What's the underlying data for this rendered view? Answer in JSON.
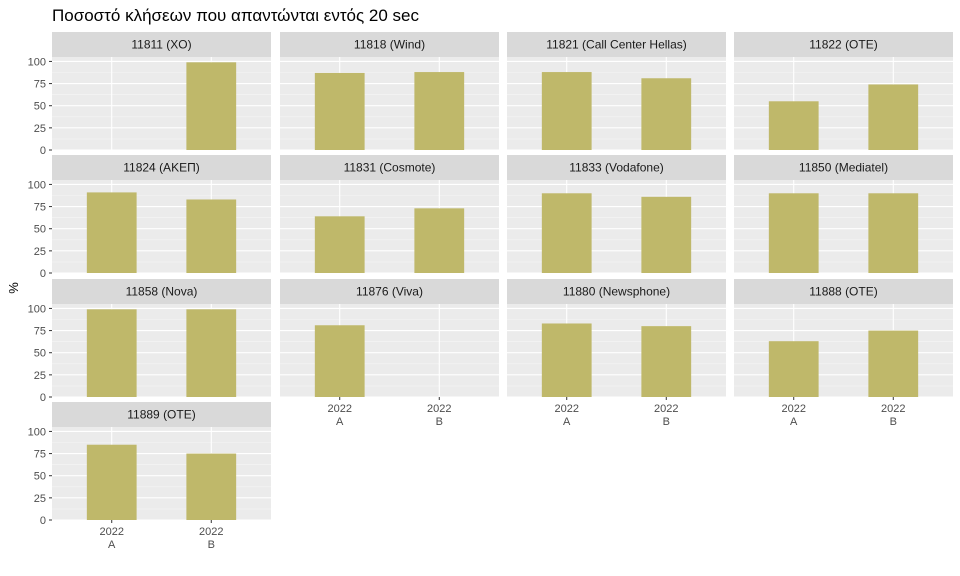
{
  "chart_data": {
    "type": "bar",
    "title": "Ποσοστό κλήσεων που απαντώνται εντός 20 sec",
    "ylabel": "%",
    "xlabel": "",
    "ylim": [
      0,
      105
    ],
    "y_ticks": [
      "0",
      "25",
      "50",
      "75",
      "100"
    ],
    "y_tick_values": [
      0,
      25,
      50,
      75,
      100
    ],
    "categories": [
      "2022 A",
      "2022 B"
    ],
    "category_lines": [
      [
        "2022",
        "A"
      ],
      [
        "2022",
        "B"
      ]
    ],
    "bar_color": "#bfb86a",
    "panel_background": "#ebebeb",
    "strip_background": "#d9d9d9",
    "grid": true,
    "facet_layout": {
      "columns": 4,
      "rows": 4
    },
    "panels": [
      {
        "name": "11811 (XO)",
        "values": [
          null,
          99
        ]
      },
      {
        "name": "11818 (Wind)",
        "values": [
          87,
          88
        ]
      },
      {
        "name": "11821 (Call Center Hellas)",
        "values": [
          88,
          81
        ]
      },
      {
        "name": "11822 (OTE)",
        "values": [
          55,
          74
        ]
      },
      {
        "name": "11824 (ΑΚΕΠ)",
        "values": [
          91,
          83
        ]
      },
      {
        "name": "11831 (Cosmote)",
        "values": [
          64,
          73
        ]
      },
      {
        "name": "11833 (Vodafone)",
        "values": [
          90,
          86
        ]
      },
      {
        "name": "11850 (Mediatel)",
        "values": [
          90,
          90
        ]
      },
      {
        "name": "11858 (Nova)",
        "values": [
          99,
          99
        ]
      },
      {
        "name": "11876 (Viva)",
        "values": [
          81,
          null
        ]
      },
      {
        "name": "11880 (Newsphone)",
        "values": [
          83,
          80
        ]
      },
      {
        "name": "11888 (OTE)",
        "values": [
          63,
          75
        ]
      },
      {
        "name": "11889 (OTE)",
        "values": [
          85,
          75
        ]
      }
    ]
  }
}
